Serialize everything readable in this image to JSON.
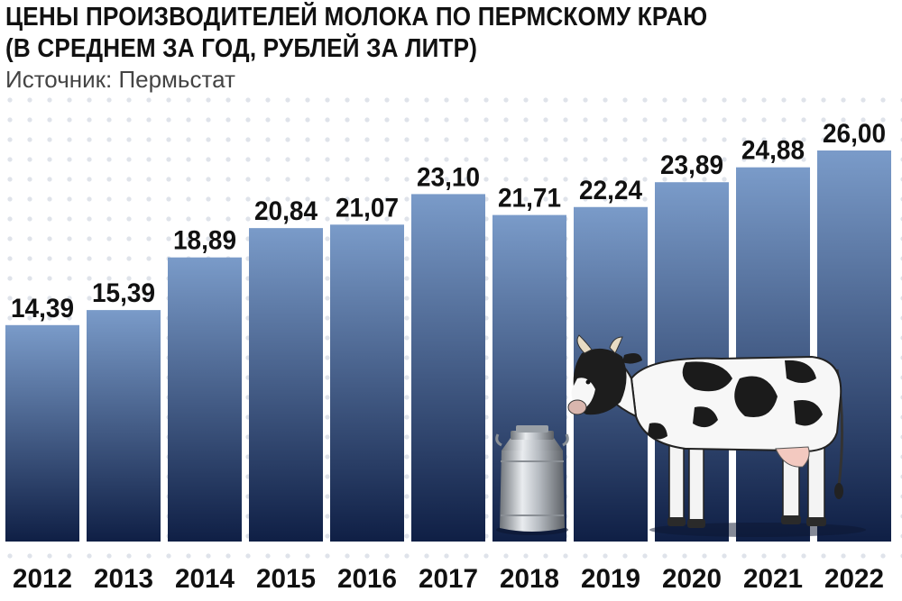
{
  "header": {
    "title": "ЦЕНЫ ПРОИЗВОДИТЕЛЕЙ МОЛОКА ПО ПЕРМСКОМУ КРАЮ",
    "subtitle": "(В СРЕДНЕМ ЗА ГОД, РУБЛЕЙ ЗА ЛИТР)",
    "source": "Источник: Пермьстат"
  },
  "chart_data": {
    "type": "bar",
    "categories": [
      "2012",
      "2013",
      "2014",
      "2015",
      "2016",
      "2017",
      "2018",
      "2019",
      "2020",
      "2021",
      "2022"
    ],
    "values": [
      14.39,
      15.39,
      18.89,
      20.84,
      21.07,
      23.1,
      21.71,
      22.24,
      23.89,
      24.88,
      26.0
    ],
    "value_labels": [
      "14,39",
      "15,39",
      "18,89",
      "20,84",
      "21,07",
      "23,10",
      "21,71",
      "22,24",
      "23,89",
      "24,88",
      "26,00"
    ],
    "title": "ЦЕНЫ ПРОИЗВОДИТЕЛЕЙ МОЛОКА ПО ПЕРМСКОМУ КРАЮ",
    "subtitle": "(В СРЕДНЕМ ЗА ГОД, РУБЛЕЙ ЗА ЛИТР)",
    "xlabel": "",
    "ylabel": "",
    "ylim": [
      0,
      26
    ],
    "grid": false,
    "colors": {
      "bar_top": "#7a9bc9",
      "bar_bottom": "#0f1f45",
      "text": "#111111"
    },
    "decorations": [
      "milk-can-icon",
      "cow-icon"
    ]
  }
}
